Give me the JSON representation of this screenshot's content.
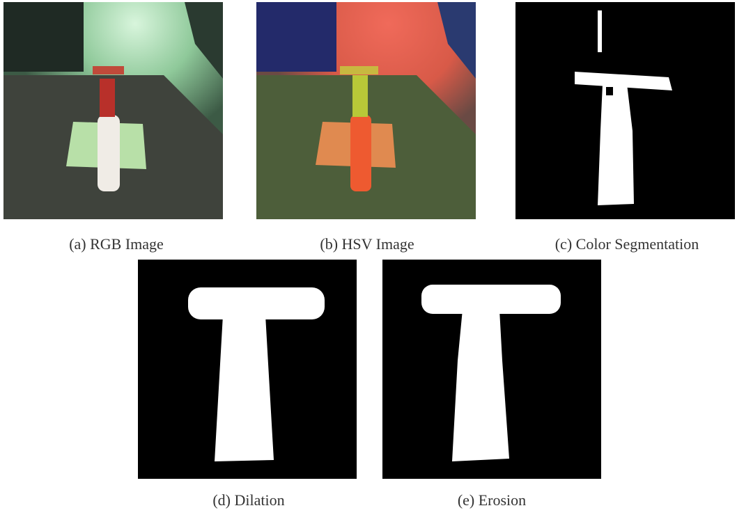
{
  "figure": {
    "panels": [
      {
        "caption": "(a) RGB Image"
      },
      {
        "caption": "(b) HSV Image"
      },
      {
        "caption": "(c) Color Segmentation"
      },
      {
        "caption": "(d) Dilation"
      },
      {
        "caption": "(e) Erosion"
      }
    ]
  }
}
